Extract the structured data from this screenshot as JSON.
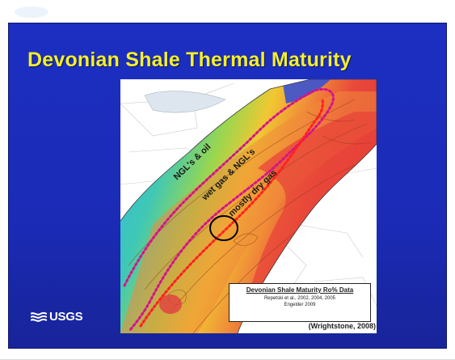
{
  "slide": {
    "title": "Devonian Shale Thermal Maturity",
    "logo_text": "USGS",
    "logo_icon": "usgs-wave-icon"
  },
  "map": {
    "zones": [
      {
        "label": "NGL's & oil",
        "color": "#39c4d9"
      },
      {
        "label": "wet gas & NGL's",
        "color": "#8fd85a"
      },
      {
        "label": "mostly dry gas",
        "color": "#e83838"
      }
    ],
    "legend": {
      "title": "Devonian Shale Maturity Ro% Data",
      "line1": "Repetski et al., 2002, 2004, 2005",
      "line2": "Engelder 2009"
    },
    "credit": "(Wrightstone, 2008)",
    "colors": {
      "boundary_dots": "#d4148a",
      "highlight_circle": "#000000",
      "slide_bg": "#1c2fc2",
      "title": "#f4ef2a"
    }
  }
}
